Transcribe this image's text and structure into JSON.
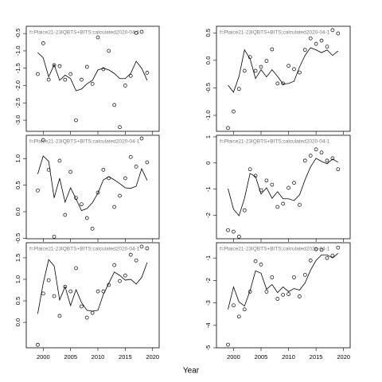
{
  "xlabel": "Year",
  "chart_data": [
    {
      "type": "line",
      "title": "f=Plaice21-23IQBTS+BITS;calculated2020-04-1",
      "x": [
        1999,
        2000,
        2001,
        2002,
        2003,
        2004,
        2005,
        2006,
        2007,
        2008,
        2009,
        2010,
        2011,
        2012,
        2013,
        2014,
        2015,
        2016,
        2017,
        2018,
        2019
      ],
      "series": [
        {
          "style": "points",
          "color": "#000000",
          "values": [
            -1.67,
            -0.78,
            -1.83,
            -1.41,
            -1.44,
            -1.83,
            -1.67,
            -3.0,
            -1.83,
            -1.46,
            -1.95,
            -0.61,
            -1.53,
            -1.0,
            -2.56,
            -3.2,
            -2.0,
            -1.72,
            -0.48,
            -0.45,
            -1.63
          ]
        },
        {
          "style": "line",
          "color": "#000000",
          "values": [
            -1.05,
            -1.2,
            -1.75,
            -1.4,
            -1.85,
            -1.7,
            -1.8,
            -2.15,
            -2.1,
            -1.95,
            -1.85,
            -1.55,
            -1.5,
            -1.55,
            -1.65,
            -1.8,
            -1.8,
            -1.65,
            -1.3,
            -1.5,
            -1.85
          ]
        }
      ],
      "xlim": [
        1996.9,
        2021.2
      ],
      "xticks": [
        2000,
        2005,
        2010,
        2015,
        2020
      ],
      "ylim": [
        -3.32,
        -0.29
      ],
      "yticks": [
        -0.5,
        {
          "value": -1,
          "label": "-1.0"
        },
        -1.5,
        {
          "value": -2,
          "label": "-2.0"
        },
        -2.5,
        {
          "value": -3,
          "label": "-3.0"
        }
      ]
    },
    {
      "type": "line",
      "title": "f=Plaice21-23IQBTS+BITS;calculated2020-04-1",
      "x": [
        1999,
        2000,
        2001,
        2002,
        2003,
        2004,
        2005,
        2006,
        2007,
        2008,
        2009,
        2010,
        2011,
        2012,
        2013,
        2014,
        2015,
        2016,
        2017,
        2018,
        2019
      ],
      "series": [
        {
          "style": "points",
          "color": "#000000",
          "values": [
            -1.23,
            -0.93,
            -0.52,
            -0.19,
            0.06,
            -0.19,
            -0.12,
            -0.01,
            0.2,
            -0.42,
            -0.42,
            -0.1,
            -0.16,
            -0.22,
            0.19,
            0.4,
            0.3,
            0.36,
            0.25,
            0.55,
            0.49
          ]
        },
        {
          "style": "line",
          "color": "#000000",
          "values": [
            -0.45,
            -0.58,
            -0.29,
            0.19,
            0.03,
            -0.33,
            -0.17,
            -0.3,
            -0.17,
            -0.29,
            -0.43,
            -0.42,
            -0.38,
            -0.12,
            0.09,
            0.23,
            0.19,
            0.14,
            0.19,
            0.09,
            0.17
          ]
        }
      ],
      "xlim": [
        1996.9,
        2021.2
      ],
      "xticks": [
        2000,
        2005,
        2010,
        2015,
        2020
      ],
      "ylim": [
        -1.29,
        0.62
      ],
      "yticks": [
        0.5,
        {
          "value": 0,
          "label": "0.0"
        },
        -0.5,
        {
          "value": -1,
          "label": "-1.0"
        }
      ]
    },
    {
      "type": "line",
      "title": "f=Plaice21-23IQBTS+BITS;calculated2020-04-1",
      "x": [
        1999,
        2000,
        2001,
        2002,
        2003,
        2004,
        2005,
        2006,
        2007,
        2008,
        2009,
        2010,
        2011,
        2012,
        2013,
        2014,
        2015,
        2016,
        2017,
        2018,
        2019
      ],
      "series": [
        {
          "style": "points",
          "color": "#000000",
          "values": [
            0.4,
            1.35,
            0.79,
            -0.47,
            0.96,
            -0.06,
            0.75,
            0.26,
            0.14,
            -0.12,
            -0.32,
            0.36,
            0.79,
            0.63,
            0.09,
            0.3,
            0.63,
            1.03,
            0.85,
            1.38,
            0.93
          ]
        },
        {
          "style": "line",
          "color": "#000000",
          "values": [
            0.71,
            1.05,
            0.95,
            0.26,
            0.63,
            0.18,
            0.45,
            0.24,
            0.02,
            0.06,
            0.17,
            0.35,
            0.6,
            0.66,
            0.6,
            0.53,
            0.45,
            0.44,
            0.48,
            0.81,
            0.59
          ]
        }
      ],
      "xlim": [
        1996.9,
        2021.2
      ],
      "xticks": [
        2000,
        2005,
        2010,
        2015,
        2020
      ],
      "ylim": [
        -0.51,
        1.44
      ],
      "yticks": [
        {
          "value": 1,
          "label": "1.0"
        },
        0.5,
        {
          "value": 0,
          "label": "0.0"
        },
        -0.5
      ]
    },
    {
      "type": "line",
      "title": "f=Plaice21-23IQBTS+BITS;calculated2020-04-1",
      "x": [
        1999,
        2000,
        2001,
        2002,
        2003,
        2004,
        2005,
        2006,
        2007,
        2008,
        2009,
        2010,
        2011,
        2012,
        2013,
        2014,
        2015,
        2016,
        2017,
        2018,
        2019
      ],
      "series": [
        {
          "style": "points",
          "color": "#000000",
          "values": [
            -2.57,
            -2.63,
            -2.82,
            -1.81,
            -0.24,
            -0.49,
            -1.04,
            -0.67,
            -0.83,
            -1.68,
            -1.56,
            -0.95,
            -0.76,
            -1.6,
            0.09,
            0.28,
            0.52,
            0.4,
            0.09,
            0.18,
            -0.24
          ]
        },
        {
          "style": "line",
          "color": "#000000",
          "values": [
            -0.98,
            -1.77,
            -2.02,
            -1.35,
            -0.4,
            -0.52,
            -1.19,
            -0.95,
            -1.35,
            -1.1,
            -1.37,
            -1.37,
            -1.44,
            -1.22,
            -0.64,
            -0.15,
            0.18,
            0.06,
            -0.03,
            0.15,
            0.03
          ]
        }
      ],
      "xlim": [
        1996.9,
        2021.2
      ],
      "xticks": [
        2000,
        2005,
        2010,
        2015,
        2020
      ],
      "ylim": [
        -2.9,
        1.06
      ],
      "yticks": [
        1,
        0,
        -1,
        -2
      ]
    },
    {
      "type": "line",
      "title": "f=Plaice21-23IQBTS+BITS;calculated2020-04-1",
      "x": [
        1999,
        2000,
        2001,
        2002,
        2003,
        2004,
        2005,
        2006,
        2007,
        2008,
        2009,
        2010,
        2011,
        2012,
        2013,
        2014,
        2015,
        2016,
        2017,
        2018,
        2019
      ],
      "series": [
        {
          "style": "points",
          "color": "#000000",
          "values": [
            -0.52,
            0.67,
            0.98,
            0.61,
            0.15,
            0.83,
            0.72,
            1.26,
            0.37,
            0.11,
            0.22,
            0.72,
            0.72,
            0.87,
            1.33,
            0.96,
            1.09,
            1.57,
            1.44,
            1.76,
            1.72
          ]
        },
        {
          "style": "line",
          "color": "#000000",
          "values": [
            0.2,
            0.91,
            1.46,
            1.31,
            0.52,
            0.83,
            0.39,
            0.76,
            0.46,
            0.28,
            0.26,
            0.28,
            0.65,
            0.91,
            1.17,
            1.09,
            0.98,
            1.0,
            0.89,
            1.04,
            1.39
          ]
        }
      ],
      "xlim": [
        1996.9,
        2021.2
      ],
      "xticks": [
        2000,
        2005,
        2010,
        2015,
        2020
      ],
      "ylim": [
        -0.59,
        1.85
      ],
      "yticks": [
        1.5,
        {
          "value": 1,
          "label": "1.0"
        },
        0.5,
        {
          "value": 0,
          "label": "0.0"
        }
      ]
    },
    {
      "type": "line",
      "title": "f=Plaice21-23IQBTS+BITS;calculated2020-04-1",
      "x": [
        1999,
        2000,
        2001,
        2002,
        2003,
        2004,
        2005,
        2006,
        2007,
        2008,
        2009,
        2010,
        2011,
        2012,
        2013,
        2014,
        2015,
        2016,
        2017,
        2018,
        2019
      ],
      "series": [
        {
          "style": "points",
          "color": "#000000",
          "values": [
            -4.86,
            -3.11,
            -3.61,
            -3.29,
            -2.5,
            -1.14,
            -1.29,
            -2.5,
            -1.86,
            -2.82,
            -2.64,
            -2.61,
            -1.86,
            -2.71,
            -1.75,
            -1.11,
            -0.61,
            -0.64,
            -1.0,
            -0.89,
            -0.54
          ]
        },
        {
          "style": "line",
          "color": "#000000",
          "values": [
            -3.29,
            -2.29,
            -2.96,
            -3.14,
            -2.46,
            -1.57,
            -1.68,
            -2.39,
            -2.18,
            -2.54,
            -2.29,
            -2.5,
            -2.36,
            -2.43,
            -2.11,
            -1.54,
            -1.11,
            -0.86,
            -0.86,
            -1.0,
            -0.79
          ]
        }
      ],
      "xlim": [
        1996.9,
        2021.2
      ],
      "xticks": [
        2000,
        2005,
        2010,
        2015,
        2020
      ],
      "ylim": [
        -5.0,
        -0.32
      ],
      "yticks": [
        -1,
        -2,
        -3,
        -4,
        -5
      ]
    }
  ]
}
